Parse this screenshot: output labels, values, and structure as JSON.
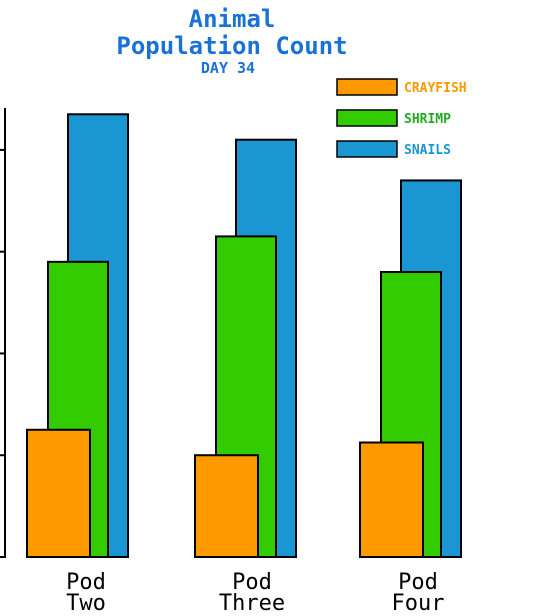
{
  "chart_data": {
    "type": "bar",
    "title_line1": "Animal",
    "title_line2": "Population Count",
    "subtitle": "DAY 34",
    "categories": [
      {
        "line1": "Pod",
        "line2": "Two"
      },
      {
        "line1": "Pod",
        "line2": "Three"
      },
      {
        "line1": "Pod",
        "line2": "Four"
      }
    ],
    "series": [
      {
        "name": "CRAYFISH",
        "color": "#ff9900",
        "label_color": "#ff9900",
        "values": [
          25,
          20,
          22.5
        ]
      },
      {
        "name": "SHRIMP",
        "color": "#33cc00",
        "label_color": "#22aa22",
        "values": [
          58,
          63,
          56
        ]
      },
      {
        "name": "SNAILS",
        "color": "#1a96d2",
        "label_color": "#1a96d2",
        "values": [
          87,
          82,
          74
        ]
      }
    ],
    "ylim": [
      0,
      90
    ],
    "y_ticks": [
      0,
      20,
      40,
      60,
      80
    ],
    "xlabel": "",
    "ylabel": "",
    "grid": false,
    "legend_position": "top-right"
  }
}
